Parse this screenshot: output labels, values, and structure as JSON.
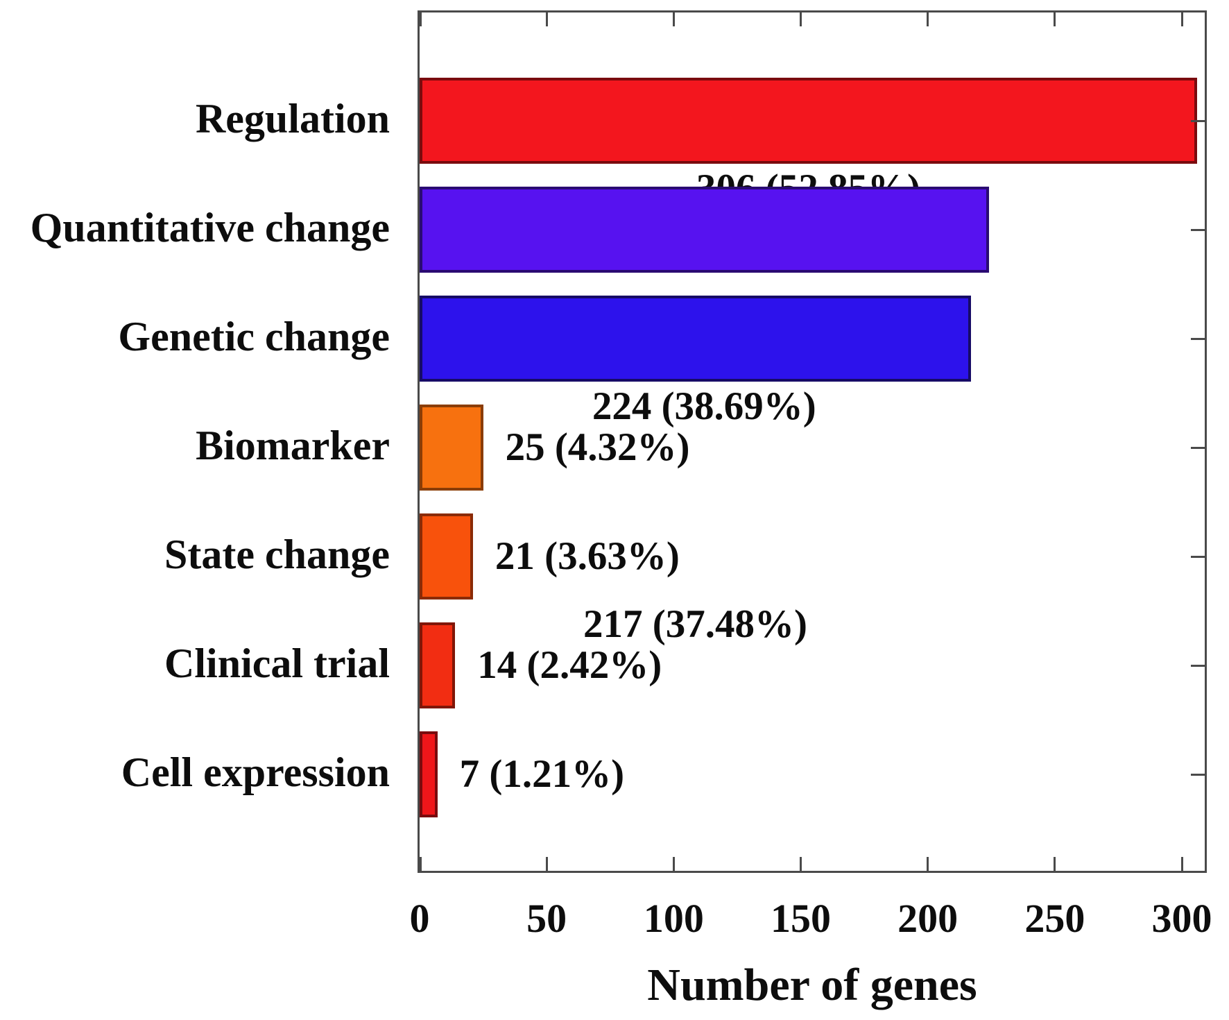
{
  "figure": {
    "axis_color": "#4a4a4a",
    "text_color": "#0d0d0d",
    "background": "#ffffff"
  },
  "chart_data": {
    "type": "bar",
    "orientation": "horizontal",
    "title": "",
    "xlabel": "Number of genes",
    "ylabel": "",
    "xlim": [
      0,
      309
    ],
    "xticks": [
      0,
      50,
      100,
      150,
      200,
      250,
      300
    ],
    "xtick_labels": [
      "0",
      "50",
      "100",
      "150",
      "200",
      "250",
      "300"
    ],
    "grid": false,
    "legend": "none",
    "categories": [
      "Regulation",
      "Quantitative change",
      "Genetic change",
      "Biomarker",
      "State change",
      "Clinical trial",
      "Cell expression"
    ],
    "values": [
      306,
      224,
      217,
      25,
      21,
      14,
      7
    ],
    "percentages": [
      52.85,
      38.69,
      37.48,
      4.32,
      3.63,
      2.42,
      1.21
    ],
    "bar_labels": [
      "306 (52.85%)",
      "224 (38.69%)",
      "217 (37.48%)",
      "25 (4.32%)",
      "21 (3.63%)",
      "14 (2.42%)",
      "7 (1.21%)"
    ],
    "bar_colors": [
      "#F3161E",
      "#5712F0",
      "#2D12EC",
      "#F7710F",
      "#F8520C",
      "#F22D12",
      "#EF161A"
    ],
    "bar_border_colors": [
      "#7A0B0E",
      "#2A0B72",
      "#160B66",
      "#8A3D06",
      "#8A2B06",
      "#801607",
      "#7A0B0E"
    ],
    "label_inside": [
      true,
      true,
      true,
      false,
      false,
      false,
      false
    ]
  }
}
